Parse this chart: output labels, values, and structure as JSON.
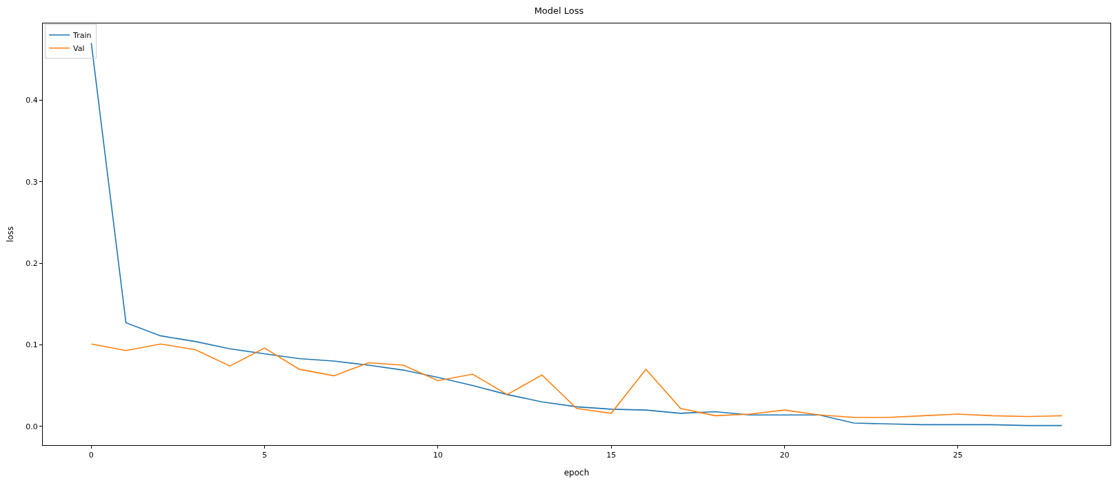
{
  "chart_data": {
    "type": "line",
    "title": "Model Loss",
    "xlabel": "epoch",
    "ylabel": "loss",
    "x": [
      0,
      1,
      2,
      3,
      4,
      5,
      6,
      7,
      8,
      9,
      10,
      11,
      12,
      13,
      14,
      15,
      16,
      17,
      18,
      19,
      20,
      21,
      22,
      23,
      24,
      25,
      26,
      27,
      28
    ],
    "series": [
      {
        "name": "Train",
        "color": "#1f77b4",
        "values": [
          0.47,
          0.127,
          0.111,
          0.104,
          0.095,
          0.089,
          0.083,
          0.08,
          0.075,
          0.069,
          0.06,
          0.05,
          0.039,
          0.03,
          0.024,
          0.021,
          0.02,
          0.016,
          0.018,
          0.014,
          0.014,
          0.014,
          0.004,
          0.003,
          0.002,
          0.002,
          0.002,
          0.001,
          0.001
        ]
      },
      {
        "name": "Val",
        "color": "#ff7f0e",
        "values": [
          0.101,
          0.093,
          0.101,
          0.094,
          0.074,
          0.096,
          0.07,
          0.062,
          0.078,
          0.075,
          0.056,
          0.064,
          0.039,
          0.063,
          0.022,
          0.016,
          0.07,
          0.022,
          0.013,
          0.015,
          0.02,
          0.014,
          0.011,
          0.011,
          0.013,
          0.015,
          0.013,
          0.012,
          0.013
        ]
      }
    ],
    "xlim": [
      -1.4,
      29.4
    ],
    "xticks": [
      0,
      5,
      10,
      15,
      20,
      25
    ],
    "ylim": [
      -0.023,
      0.494
    ],
    "yticks": [
      {
        "value": 0,
        "label": "0.0"
      },
      0.1,
      0.2,
      0.3,
      0.4
    ],
    "legend": "top left",
    "marker": "none",
    "line_style": "solid"
  }
}
